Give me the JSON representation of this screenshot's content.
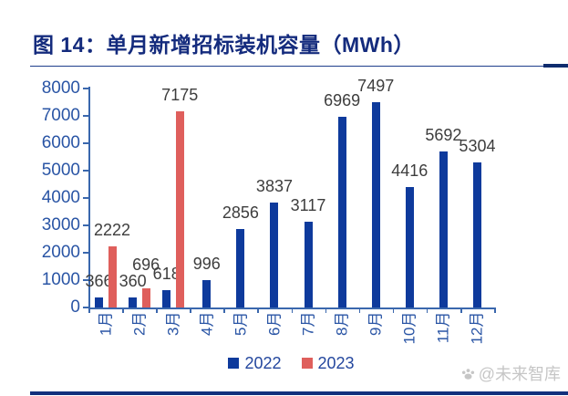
{
  "title": "图 14：单月新增招标装机容量（MWh）",
  "chart_data": {
    "type": "bar",
    "title": "单月新增招标装机容量（MWh）",
    "categories": [
      "1月",
      "2月",
      "3月",
      "4月",
      "5月",
      "6月",
      "7月",
      "8月",
      "9月",
      "10月",
      "11月",
      "12月"
    ],
    "series": [
      {
        "name": "2022",
        "color": "#0E3A9C",
        "values": [
          366,
          360,
          618,
          996,
          2856,
          3837,
          3117,
          6969,
          7497,
          4416,
          5692,
          5304
        ]
      },
      {
        "name": "2023",
        "color": "#DF5F5C",
        "values": [
          2222,
          696,
          7175,
          null,
          null,
          null,
          null,
          null,
          null,
          null,
          null,
          null
        ]
      }
    ],
    "ylim": [
      0,
      8000
    ],
    "ytick_step": 1000,
    "xlabel": "",
    "ylabel": "",
    "grid": false,
    "data_labels": true,
    "legend_position": "bottom"
  },
  "watermark": {
    "icon": "paw-icon",
    "text": "@未来智库"
  },
  "colors": {
    "title_navy": "#142B7D",
    "rule_navy": "#1E3E8C",
    "rule_navy_dark": "#0F2C6E",
    "bottom_bar_navy": "#12307C",
    "axis_blue": "#3A67AD",
    "tick_label_blue": "#2A55A5",
    "data_label_gray": "#3D3D3D",
    "bar_2022": "#0E3A9C",
    "bar_2023": "#DF5F5C",
    "watermark_gray": "#C6C6C6",
    "background": "#FFFFFF"
  }
}
